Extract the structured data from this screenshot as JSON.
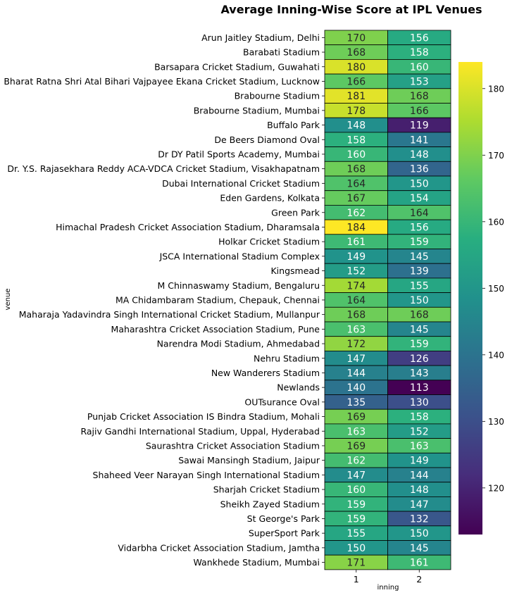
{
  "chart_data": {
    "type": "heatmap",
    "title": "Average Inning-Wise Score at IPL Venues",
    "xlabel": "inning",
    "ylabel": "venue",
    "x": [
      "1",
      "2"
    ],
    "colormap": "viridis",
    "color_range": [
      113,
      184
    ],
    "colorbar_ticks": [
      120,
      130,
      140,
      150,
      160,
      170,
      180
    ],
    "annotations_shown": true,
    "rows": [
      {
        "venue": "Arun Jaitley Stadium, Delhi",
        "values": [
          170,
          156
        ]
      },
      {
        "venue": "Barabati Stadium",
        "values": [
          168,
          158
        ]
      },
      {
        "venue": "Barsapara Cricket Stadium, Guwahati",
        "values": [
          180,
          160
        ]
      },
      {
        "venue": "Bharat Ratna Shri Atal Bihari Vajpayee Ekana Cricket Stadium, Lucknow",
        "values": [
          166,
          153
        ]
      },
      {
        "venue": "Brabourne Stadium",
        "values": [
          181,
          168
        ]
      },
      {
        "venue": "Brabourne Stadium, Mumbai",
        "values": [
          178,
          166
        ]
      },
      {
        "venue": "Buffalo Park",
        "values": [
          148,
          119
        ]
      },
      {
        "venue": "De Beers Diamond Oval",
        "values": [
          158,
          141
        ]
      },
      {
        "venue": "Dr DY Patil Sports Academy, Mumbai",
        "values": [
          160,
          148
        ]
      },
      {
        "venue": "Dr. Y.S. Rajasekhara Reddy ACA-VDCA Cricket Stadium, Visakhapatnam",
        "values": [
          168,
          136
        ]
      },
      {
        "venue": "Dubai International Cricket Stadium",
        "values": [
          164,
          150
        ]
      },
      {
        "venue": "Eden Gardens, Kolkata",
        "values": [
          167,
          154
        ]
      },
      {
        "venue": "Green Park",
        "values": [
          162,
          164
        ]
      },
      {
        "venue": "Himachal Pradesh Cricket Association Stadium, Dharamsala",
        "values": [
          184,
          156
        ]
      },
      {
        "venue": "Holkar Cricket Stadium",
        "values": [
          161,
          159
        ]
      },
      {
        "venue": "JSCA International Stadium Complex",
        "values": [
          149,
          145
        ]
      },
      {
        "venue": "Kingsmead",
        "values": [
          152,
          139
        ]
      },
      {
        "venue": "M Chinnaswamy Stadium, Bengaluru",
        "values": [
          174,
          155
        ]
      },
      {
        "venue": "MA Chidambaram Stadium, Chepauk, Chennai",
        "values": [
          164,
          150
        ]
      },
      {
        "venue": "Maharaja Yadavindra Singh International Cricket Stadium, Mullanpur",
        "values": [
          168,
          168
        ]
      },
      {
        "venue": "Maharashtra Cricket Association Stadium, Pune",
        "values": [
          163,
          145
        ]
      },
      {
        "venue": "Narendra Modi Stadium, Ahmedabad",
        "values": [
          172,
          159
        ]
      },
      {
        "venue": "Nehru Stadium",
        "values": [
          147,
          126
        ]
      },
      {
        "venue": "New Wanderers Stadium",
        "values": [
          144,
          143
        ]
      },
      {
        "venue": "Newlands",
        "values": [
          140,
          113
        ]
      },
      {
        "venue": "OUTsurance Oval",
        "values": [
          135,
          130
        ]
      },
      {
        "venue": "Punjab Cricket Association IS Bindra Stadium, Mohali",
        "values": [
          169,
          158
        ]
      },
      {
        "venue": "Rajiv Gandhi International Stadium, Uppal, Hyderabad",
        "values": [
          163,
          152
        ]
      },
      {
        "venue": "Saurashtra Cricket Association Stadium",
        "values": [
          169,
          163
        ]
      },
      {
        "venue": "Sawai Mansingh Stadium, Jaipur",
        "values": [
          162,
          149
        ]
      },
      {
        "venue": "Shaheed Veer Narayan Singh International Stadium",
        "values": [
          147,
          144
        ]
      },
      {
        "venue": "Sharjah Cricket Stadium",
        "values": [
          160,
          148
        ]
      },
      {
        "venue": "Sheikh Zayed Stadium",
        "values": [
          159,
          147
        ]
      },
      {
        "venue": "St George's Park",
        "values": [
          159,
          132
        ]
      },
      {
        "venue": "SuperSport Park",
        "values": [
          155,
          150
        ]
      },
      {
        "venue": "Vidarbha Cricket Association Stadium, Jamtha",
        "values": [
          150,
          145
        ]
      },
      {
        "venue": "Wankhede Stadium, Mumbai",
        "values": [
          171,
          161
        ]
      }
    ]
  }
}
